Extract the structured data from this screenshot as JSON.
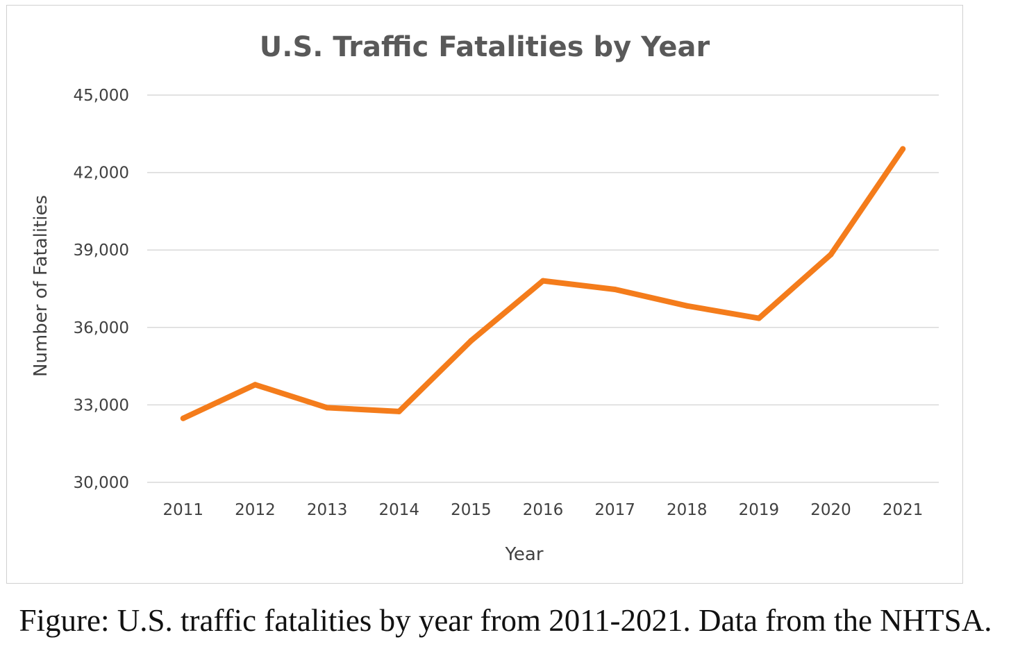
{
  "chart_data": {
    "type": "line",
    "title": "U.S. Traffic Fatalities by Year",
    "xlabel": "Year",
    "ylabel": "Number of Fatalities",
    "categories": [
      "2011",
      "2012",
      "2013",
      "2014",
      "2015",
      "2016",
      "2017",
      "2018",
      "2019",
      "2020",
      "2021"
    ],
    "series": [
      {
        "name": "Fatalities",
        "values": [
          32479,
          33782,
          32893,
          32744,
          35484,
          37806,
          37473,
          36835,
          36355,
          38824,
          42915
        ],
        "color": "#f47c1b"
      }
    ],
    "ylim": [
      30000,
      45000
    ],
    "yticks": [
      30000,
      33000,
      36000,
      39000,
      42000,
      45000
    ],
    "ytick_labels": [
      "30,000",
      "33,000",
      "36,000",
      "39,000",
      "42,000",
      "45,000"
    ],
    "grid": true,
    "gridline_color": "#d9d9d9"
  },
  "caption": "Figure: U.S. traffic fatalities by year from 2011-2021. Data from the NHTSA."
}
